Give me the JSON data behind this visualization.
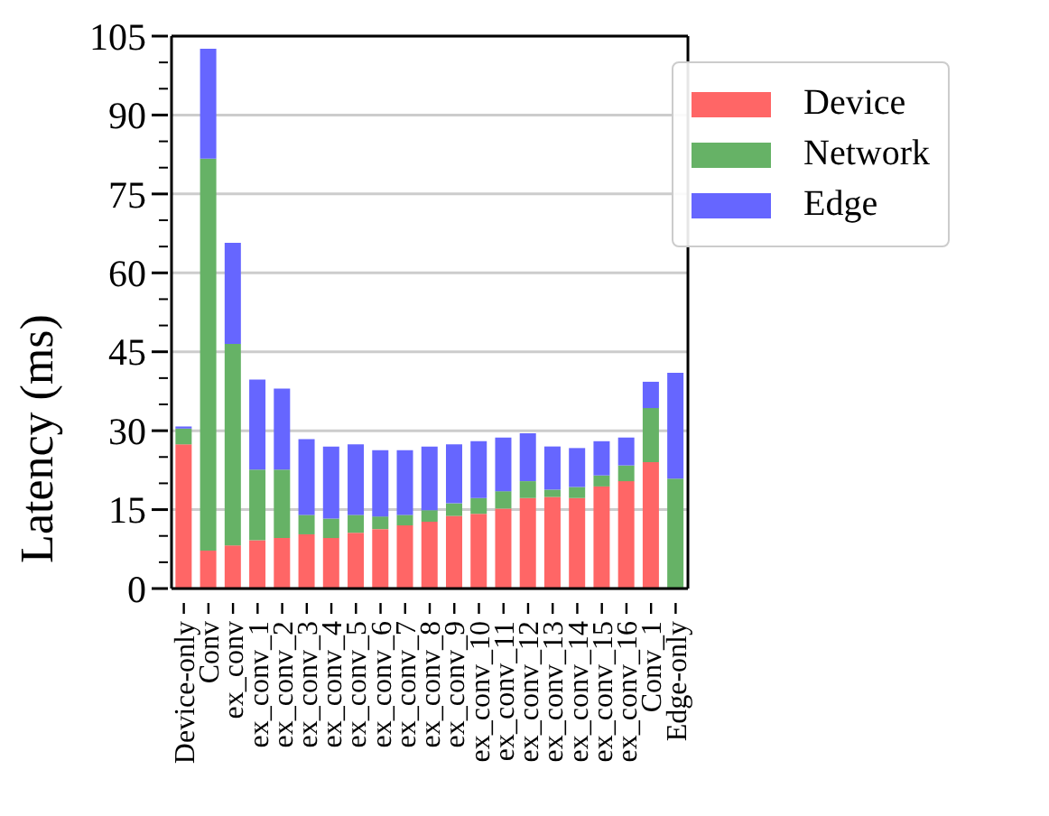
{
  "chart_data": {
    "type": "bar",
    "stacked": true,
    "ylabel": "Latency (ms)",
    "categories": [
      "Device-only",
      "Conv",
      "ex_conv",
      "ex_conv_1",
      "ex_conv_2",
      "ex_conv_3",
      "ex_conv_4",
      "ex_conv_5",
      "ex_conv_6",
      "ex_conv_7",
      "ex_conv_8",
      "ex_conv_9",
      "ex_conv_10",
      "ex_conv_11",
      "ex_conv_12",
      "ex_conv_13",
      "ex_conv_14",
      "ex_conv_15",
      "ex_conv_16",
      "Conv_1",
      "Edge-only"
    ],
    "series": [
      {
        "name": "Device",
        "color": "#ff6666",
        "values": [
          27.4,
          7.2,
          8.2,
          9.2,
          9.6,
          10.3,
          9.6,
          10.6,
          11.3,
          12.0,
          12.7,
          13.8,
          14.2,
          15.2,
          17.2,
          17.4,
          17.2,
          19.4,
          20.4,
          24.0,
          0
        ]
      },
      {
        "name": "Network",
        "color": "#66b266",
        "values": [
          3.0,
          74.5,
          38.3,
          13.4,
          13.0,
          3.7,
          3.7,
          3.4,
          2.4,
          2.0,
          2.2,
          2.4,
          3.0,
          3.3,
          3.2,
          1.4,
          2.1,
          2.1,
          3.0,
          10.3,
          20.9
        ]
      },
      {
        "name": "Edge",
        "color": "#6666ff",
        "values": [
          0.4,
          20.9,
          19.2,
          17.1,
          15.4,
          14.4,
          13.7,
          13.4,
          12.6,
          12.3,
          12.1,
          11.2,
          10.8,
          10.2,
          9.1,
          8.2,
          7.4,
          6.5,
          5.3,
          5.0,
          20.1
        ]
      }
    ],
    "ylim": [
      0,
      105
    ],
    "yticks": [
      0,
      {
        "value": 5,
        "label": null
      },
      {
        "value": 10,
        "label": null
      },
      15,
      {
        "value": 20,
        "label": null
      },
      {
        "value": 25,
        "label": null
      },
      30,
      {
        "value": 35,
        "label": null
      },
      {
        "value": 40,
        "label": null
      },
      45,
      {
        "value": 50,
        "label": null
      },
      {
        "value": 55,
        "label": null
      },
      60,
      {
        "value": 65,
        "label": null
      },
      {
        "value": 70,
        "label": null
      },
      75,
      {
        "value": 80,
        "label": null
      },
      {
        "value": 85,
        "label": null
      },
      90,
      {
        "value": 95,
        "label": null
      },
      {
        "value": 100,
        "label": null
      },
      105
    ],
    "grid": "y",
    "legend": "top right"
  }
}
